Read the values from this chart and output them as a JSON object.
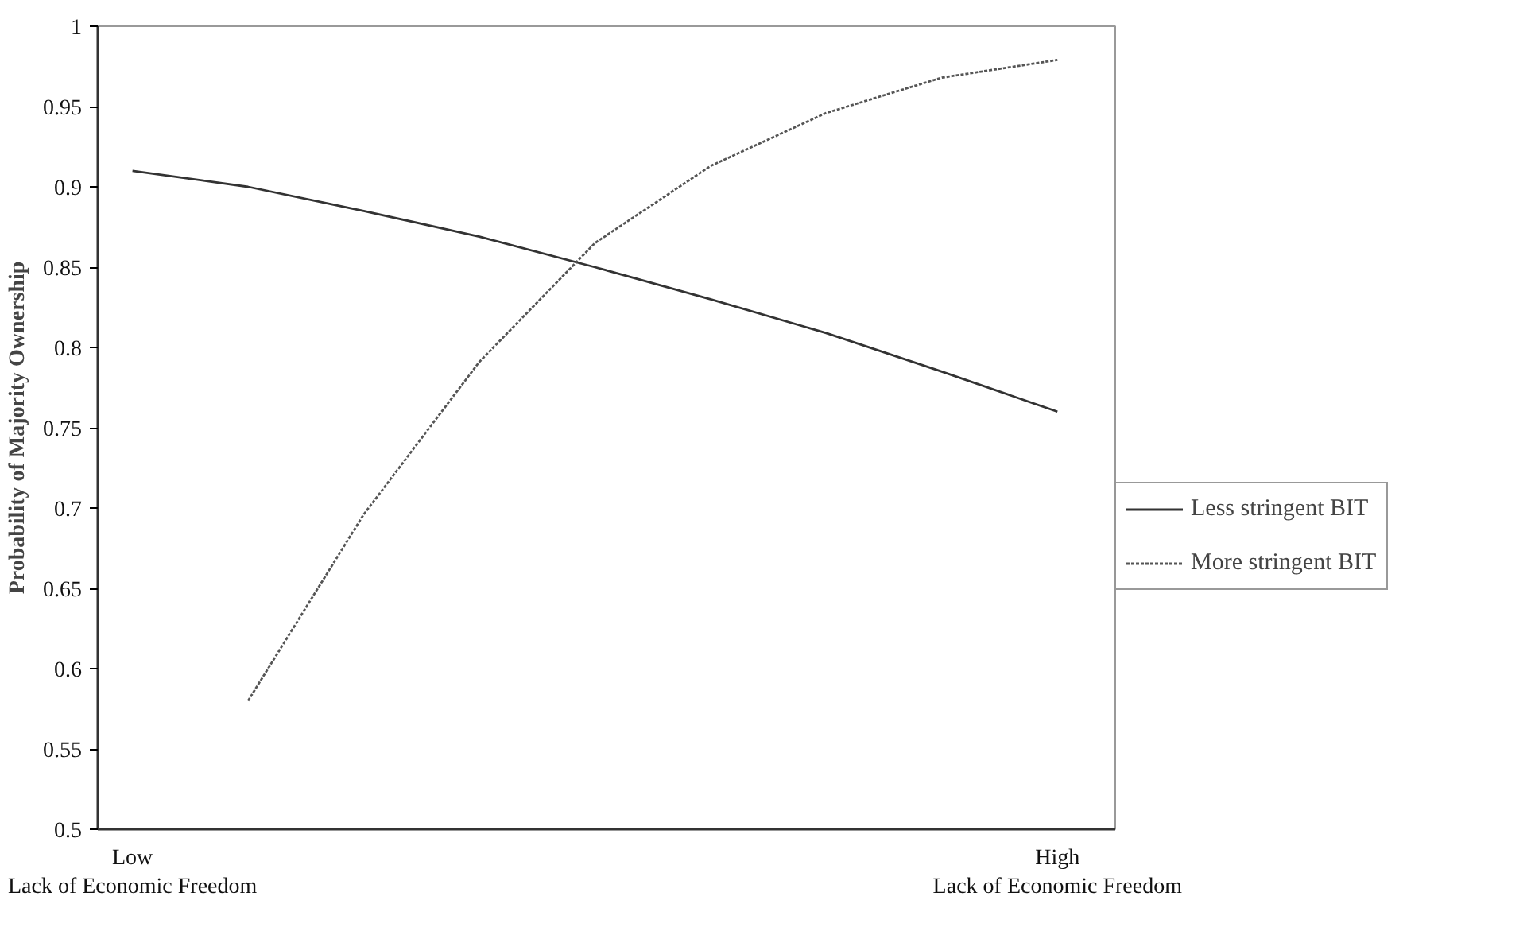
{
  "chart_data": {
    "type": "line",
    "ylabel": "Probability of Majority Ownership",
    "categories": [
      "Low\nLack of Economic Freedom",
      null,
      null,
      null,
      null,
      null,
      null,
      null,
      "High\nLack of Economic Freedom"
    ],
    "series": [
      {
        "name": "Less stringent BIT",
        "color": "#333333",
        "line_style": "solid",
        "values": [
          0.91,
          0.9,
          0.885,
          0.869,
          0.85,
          0.83,
          0.809,
          0.785,
          0.76
        ]
      },
      {
        "name": "More stringent BIT",
        "color": "#555555",
        "line_style": "dotted",
        "values": [
          null,
          0.58,
          0.696,
          0.791,
          0.865,
          0.913,
          0.946,
          0.968,
          0.979
        ]
      }
    ],
    "ylim": [
      0.5,
      1
    ],
    "yticks": [
      0.5,
      0.55,
      0.6,
      0.65,
      0.7,
      0.75,
      0.8,
      0.85,
      0.9,
      0.95,
      1
    ],
    "grid": false,
    "legend": "right",
    "marker": "none"
  }
}
